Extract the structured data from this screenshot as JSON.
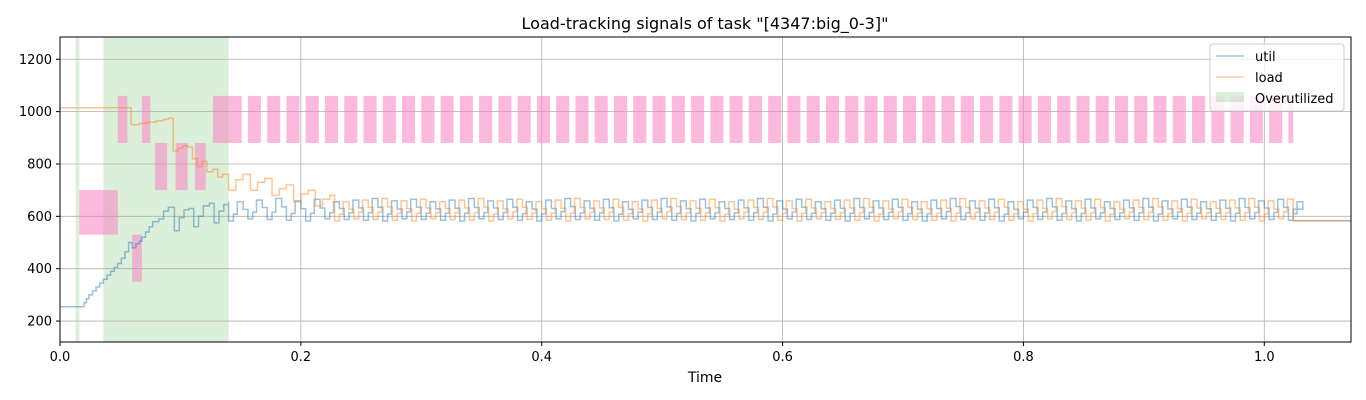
{
  "chart_data": {
    "type": "line",
    "title": "Load-tracking signals of task \"[4347:big_0-3]\"",
    "xlabel": "Time",
    "ylabel": "",
    "xlim": [
      0.0,
      1.072
    ],
    "ylim": [
      120,
      1285
    ],
    "x_ticks": [
      0.0,
      0.2,
      0.4,
      0.6,
      0.8,
      1.0
    ],
    "x_tick_labels": [
      "0.0",
      "0.2",
      "0.4",
      "0.6",
      "0.8",
      "1.0"
    ],
    "y_ticks": [
      200,
      400,
      600,
      800,
      1000,
      1200
    ],
    "y_tick_labels": [
      "200",
      "400",
      "600",
      "800",
      "1000",
      "1200"
    ],
    "grid": true,
    "legend_position": "top-right",
    "legend": [
      {
        "label": "util",
        "kind": "line",
        "color": "#1f77b4"
      },
      {
        "label": "load",
        "kind": "line",
        "color": "#ff7f0e"
      },
      {
        "label": "Overutilized",
        "kind": "patch",
        "color": "#2ca02c"
      }
    ],
    "overutilized_intervals": [
      [
        0.013,
        0.016
      ],
      [
        0.036,
        0.14
      ]
    ],
    "cpu_residency_bars": {
      "color": "#f781bf",
      "bands": [
        {
          "level": 0,
          "y_range": [
            530,
            700
          ]
        },
        {
          "level": 1,
          "y_range": [
            350,
            530
          ]
        },
        {
          "level": 2,
          "y_range": [
            880,
            1060
          ]
        },
        {
          "level": 3,
          "y_range": [
            700,
            880
          ]
        }
      ],
      "early_segments": [
        {
          "band": 0,
          "start": 0.016,
          "end": 0.048
        },
        {
          "band": 2,
          "start": 0.048,
          "end": 0.056
        },
        {
          "band": 1,
          "start": 0.06,
          "end": 0.068
        },
        {
          "band": 2,
          "start": 0.068,
          "end": 0.075
        },
        {
          "band": 3,
          "start": 0.079,
          "end": 0.089
        },
        {
          "band": 3,
          "start": 0.096,
          "end": 0.106
        },
        {
          "band": 3,
          "start": 0.112,
          "end": 0.121
        },
        {
          "band": 2,
          "start": 0.127,
          "end": 0.14
        }
      ],
      "periodic": {
        "band": 2,
        "start": 0.14,
        "end": 1.024,
        "period": 0.016,
        "duty": 0.68
      }
    },
    "series": [
      {
        "name": "util",
        "color": "#1f77b4",
        "early_points": [
          [
            0.0,
            255
          ],
          [
            0.018,
            255
          ],
          [
            0.02,
            270
          ],
          [
            0.022,
            285
          ],
          [
            0.024,
            300
          ],
          [
            0.027,
            315
          ],
          [
            0.03,
            330
          ],
          [
            0.033,
            345
          ],
          [
            0.036,
            360
          ],
          [
            0.039,
            375
          ],
          [
            0.042,
            390
          ],
          [
            0.045,
            405
          ],
          [
            0.048,
            420
          ],
          [
            0.051,
            440
          ],
          [
            0.054,
            465
          ],
          [
            0.057,
            500
          ],
          [
            0.06,
            480
          ],
          [
            0.063,
            495
          ],
          [
            0.066,
            505
          ],
          [
            0.068,
            520
          ],
          [
            0.071,
            540
          ],
          [
            0.074,
            560
          ],
          [
            0.077,
            580
          ],
          [
            0.082,
            590
          ],
          [
            0.086,
            620
          ],
          [
            0.09,
            635
          ],
          [
            0.095,
            545
          ],
          [
            0.099,
            595
          ],
          [
            0.103,
            625
          ],
          [
            0.107,
            630
          ],
          [
            0.111,
            560
          ],
          [
            0.115,
            600
          ],
          [
            0.119,
            640
          ],
          [
            0.124,
            650
          ],
          [
            0.128,
            575
          ],
          [
            0.132,
            620
          ],
          [
            0.136,
            645
          ],
          [
            0.14,
            655
          ]
        ],
        "periodic": {
          "start": 0.14,
          "end": 1.024,
          "period": 0.016,
          "low": 585,
          "high": 662,
          "after_end": 583
        }
      },
      {
        "name": "load",
        "color": "#ff7f0e",
        "early_points": [
          [
            0.0,
            1015
          ],
          [
            0.056,
            1015
          ],
          [
            0.059,
            950
          ],
          [
            0.066,
            955
          ],
          [
            0.072,
            960
          ],
          [
            0.08,
            965
          ],
          [
            0.086,
            970
          ],
          [
            0.09,
            975
          ],
          [
            0.094,
            850
          ],
          [
            0.098,
            860
          ],
          [
            0.102,
            870
          ],
          [
            0.106,
            865
          ],
          [
            0.11,
            820
          ],
          [
            0.114,
            790
          ],
          [
            0.118,
            810
          ],
          [
            0.122,
            770
          ],
          [
            0.127,
            780
          ],
          [
            0.131,
            750
          ],
          [
            0.135,
            760
          ],
          [
            0.14,
            700
          ],
          [
            0.146,
            740
          ],
          [
            0.152,
            760
          ],
          [
            0.158,
            700
          ],
          [
            0.164,
            730
          ],
          [
            0.17,
            745
          ],
          [
            0.176,
            680
          ],
          [
            0.182,
            705
          ],
          [
            0.188,
            720
          ],
          [
            0.194,
            655
          ],
          [
            0.2,
            685
          ],
          [
            0.206,
            700
          ],
          [
            0.212,
            640
          ],
          [
            0.218,
            665
          ],
          [
            0.224,
            680
          ]
        ],
        "periodic": {
          "start": 0.228,
          "end": 1.024,
          "period": 0.016,
          "low": 585,
          "high": 662,
          "after_end": 583
        }
      }
    ]
  }
}
